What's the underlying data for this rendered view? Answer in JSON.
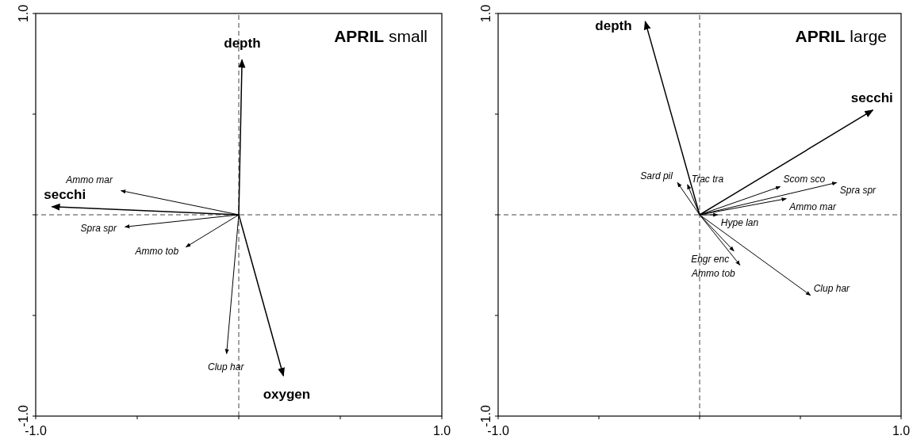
{
  "chart_data": [
    {
      "type": "line",
      "title": "APRIL small",
      "xlim": [
        -1,
        1
      ],
      "ylim": [
        -1,
        1
      ],
      "xticks": [
        {
          "value": -1,
          "label": "-1.0"
        },
        {
          "value": -0.5,
          "label": null
        },
        {
          "value": 0,
          "label": null
        },
        {
          "value": 0.5,
          "label": null
        },
        {
          "value": 1,
          "label": "1.0"
        }
      ],
      "yticks": [
        {
          "value": -1,
          "label": "-1.0"
        },
        {
          "value": -0.5,
          "label": null
        },
        {
          "value": 0,
          "label": null
        },
        {
          "value": 0.5,
          "label": null
        },
        {
          "value": 1,
          "label": "1.0"
        }
      ],
      "ref_lines": [
        {
          "axis": "x",
          "value": 0,
          "line_style": "dashed"
        },
        {
          "axis": "y",
          "value": 0,
          "line_style": "dashed"
        }
      ],
      "series": [
        {
          "name": "depth",
          "x": [
            0,
            0.016
          ],
          "values": [
            0,
            0.77
          ]
        },
        {
          "name": "secchi",
          "x": [
            0,
            -0.92
          ],
          "values": [
            0,
            0.04
          ]
        },
        {
          "name": "oxygen",
          "x": [
            0,
            0.22
          ],
          "values": [
            0,
            -0.8
          ]
        },
        {
          "name": "Ammo mar",
          "x": [
            0,
            -0.58
          ],
          "values": [
            0,
            0.12
          ]
        },
        {
          "name": "Spra spr",
          "x": [
            0,
            -0.56
          ],
          "values": [
            0,
            -0.06
          ]
        },
        {
          "name": "Ammo tob",
          "x": [
            0,
            -0.26
          ],
          "values": [
            0,
            -0.16
          ]
        },
        {
          "name": "Clup har",
          "x": [
            0,
            -0.06
          ],
          "values": [
            0,
            -0.69
          ]
        }
      ]
    },
    {
      "type": "line",
      "title": "APRIL large",
      "xlim": [
        -1,
        1
      ],
      "ylim": [
        -1,
        1
      ],
      "xticks": [
        {
          "value": -1,
          "label": "-1.0"
        },
        {
          "value": -0.5,
          "label": null
        },
        {
          "value": 0,
          "label": null
        },
        {
          "value": 0.5,
          "label": null
        },
        {
          "value": 1,
          "label": "1.0"
        }
      ],
      "yticks": [
        {
          "value": -1,
          "label": "-1.0"
        },
        {
          "value": -0.5,
          "label": null
        },
        {
          "value": 0,
          "label": null
        },
        {
          "value": 0.5,
          "label": null
        },
        {
          "value": 1,
          "label": "1.0"
        }
      ],
      "ref_lines": [
        {
          "axis": "x",
          "value": 0,
          "line_style": "dashed"
        },
        {
          "axis": "y",
          "value": 0,
          "line_style": "dashed"
        }
      ],
      "series": [
        {
          "name": "depth",
          "x": [
            0,
            -0.27
          ],
          "values": [
            0,
            0.96
          ]
        },
        {
          "name": "secchi",
          "x": [
            0,
            0.86
          ],
          "values": [
            0,
            0.52
          ]
        },
        {
          "name": "Trac tra",
          "x": [
            0,
            -0.06
          ],
          "values": [
            0,
            0.15
          ]
        },
        {
          "name": "Sard pil",
          "x": [
            0,
            -0.11
          ],
          "values": [
            0,
            0.16
          ]
        },
        {
          "name": "Scom sco",
          "x": [
            0,
            0.4
          ],
          "values": [
            0,
            0.14
          ]
        },
        {
          "name": "Spra spr",
          "x": [
            0,
            0.68
          ],
          "values": [
            0,
            0.16
          ]
        },
        {
          "name": "Ammo mar",
          "x": [
            0,
            0.43
          ],
          "values": [
            0,
            0.08
          ]
        },
        {
          "name": "Hype lan",
          "x": [
            0,
            0.09
          ],
          "values": [
            0,
            0.0
          ]
        },
        {
          "name": "Engr enc",
          "x": [
            0,
            0.17
          ],
          "values": [
            0,
            -0.18
          ]
        },
        {
          "name": "Ammo tob",
          "x": [
            0,
            0.2
          ],
          "values": [
            0,
            -0.25
          ]
        },
        {
          "name": "Clup har",
          "x": [
            0,
            0.55
          ],
          "values": [
            0,
            -0.4
          ]
        }
      ]
    }
  ]
}
